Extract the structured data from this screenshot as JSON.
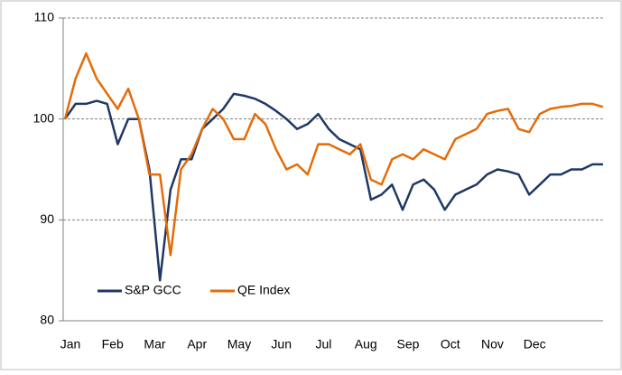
{
  "chart_data": {
    "type": "line",
    "categories": [
      "Jan",
      null,
      null,
      null,
      "Feb",
      null,
      null,
      null,
      "Mar",
      null,
      null,
      null,
      "Apr",
      null,
      null,
      null,
      "May",
      null,
      null,
      null,
      "Jun",
      null,
      null,
      null,
      "Jul",
      null,
      null,
      null,
      "Aug",
      null,
      null,
      null,
      "Sep",
      null,
      null,
      null,
      "Oct",
      null,
      null,
      null,
      "Nov",
      null,
      null,
      null,
      "Dec",
      null,
      null,
      null,
      null,
      null,
      null,
      null
    ],
    "series": [
      {
        "name": "S&P GCC",
        "color": "#1f3864",
        "values": [
          100,
          101.5,
          101.5,
          101.8,
          101.5,
          97.5,
          100,
          100,
          95,
          84,
          93,
          96,
          96,
          99,
          100,
          101,
          102.5,
          102.3,
          102,
          101.5,
          100.8,
          100,
          99,
          99.5,
          100.5,
          99,
          98,
          97.5,
          97,
          92,
          92.5,
          93.5,
          91,
          93.5,
          94,
          93,
          91,
          92.5,
          93,
          93.5,
          94.5,
          95,
          94.8,
          94.5,
          92.5,
          93.5,
          94.5,
          94.5,
          95,
          95,
          95.5,
          95.5
        ]
      },
      {
        "name": "QE Index",
        "color": "#e46c0a",
        "values": [
          100,
          104,
          106.5,
          104,
          102.5,
          101,
          103,
          100,
          94.5,
          94.5,
          86.5,
          95,
          96.5,
          99,
          101,
          100,
          98,
          98,
          100.5,
          99.5,
          97,
          95,
          95.5,
          94.5,
          97.5,
          97.5,
          97,
          96.5,
          97.5,
          94,
          93.5,
          96,
          96.5,
          96,
          97,
          96.5,
          96,
          98,
          98.5,
          99,
          100.5,
          100.8,
          101,
          99,
          98.7,
          100.5,
          101,
          101.2,
          101.3,
          101.5,
          101.5,
          101.2
        ]
      }
    ],
    "ylim": [
      80,
      110
    ],
    "yticks": [
      80,
      90,
      100,
      110
    ],
    "grid": true,
    "legend": "lower-left"
  }
}
